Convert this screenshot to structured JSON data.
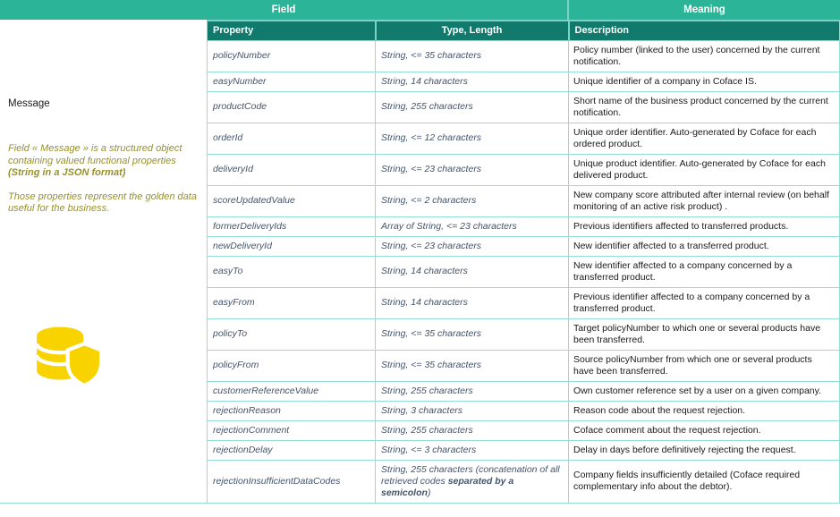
{
  "header": {
    "field": "Field",
    "meaning": "Meaning"
  },
  "table": {
    "columns": {
      "property": "Property",
      "type_length": "Type, Length",
      "description": "Description"
    },
    "rows": [
      {
        "property": "policyNumber",
        "type": "String, <= 35 characters",
        "description": "Policy number (linked to the user) concerned by the current notification."
      },
      {
        "property": "easyNumber",
        "type": "String, 14 characters",
        "description": "Unique identifier of a company in Coface IS."
      },
      {
        "property": "productCode",
        "type": "String, 255 characters",
        "description": "Short name of the business product concerned by the current notification."
      },
      {
        "property": "orderId",
        "type": "String, <= 12 characters",
        "description": "Unique order identifier. Auto-generated by Coface for each ordered product."
      },
      {
        "property": "deliveryId",
        "type": "String, <= 23 characters",
        "description": "Unique product identifier. Auto-generated by Coface for each delivered product."
      },
      {
        "property": "scoreUpdatedValue",
        "type": "String, <= 2 characters",
        "description": "New company score attributed after internal review (on behalf monitoring of an active risk product) ."
      },
      {
        "property": "formerDeliveryIds",
        "type": "Array of String, <= 23 characters",
        "description": "Previous identifiers affected to transferred products."
      },
      {
        "property": "newDeliveryId",
        "type": "String, <= 23 characters",
        "description": "New identifier affected to a transferred product."
      },
      {
        "property": "easyTo",
        "type": "String, 14 characters",
        "description": "New identifier affected to a company concerned by a transferred product."
      },
      {
        "property": "easyFrom",
        "type": "String, 14 characters",
        "description": "Previous identifier affected to a company concerned by a transferred product."
      },
      {
        "property": "policyTo",
        "type": "String, <= 35 characters",
        "description": "Target policyNumber to which one or several products have been transferred."
      },
      {
        "property": "policyFrom",
        "type": "String, <= 35 characters",
        "description": "Source policyNumber from which one or several products have been transferred."
      },
      {
        "property": "customerReferenceValue",
        "type": "String, 255 characters",
        "description": "Own customer reference set by a user on a given company."
      },
      {
        "property": "rejectionReason",
        "type": "String, 3 characters",
        "description": "Reason code about the request rejection."
      },
      {
        "property": "rejectionComment",
        "type": "String, 255 characters",
        "description": "Coface comment about the request rejection."
      },
      {
        "property": "rejectionDelay",
        "type": "String, <= 3 characters",
        "description": "Delay in days before definitively rejecting the request."
      },
      {
        "property": "rejectionInsufficientDataCodes",
        "type": "String, 255 characters (concatenation of all retrieved codes **separated by a semicolon**)",
        "description": "Company fields insufficiently detailed (Coface required complementary info about the debtor)."
      }
    ]
  },
  "left_panel": {
    "title": "Message",
    "note_1": "Field « Message » is a structured object containing valued functional properties **(String in a JSON format)**",
    "note_2": "Those properties represent the golden data useful for the business.",
    "icon": "database-shield-icon"
  },
  "colors": {
    "header_green": "#2BB498",
    "subheader_teal": "#117A6C",
    "border_teal": "#93DED4",
    "divider_teal": "#7AD4C6",
    "property_text": "#44546A",
    "description_text": "#1A1A1A",
    "note_olive": "#97902A",
    "icon_yellow": "#F8D300"
  }
}
